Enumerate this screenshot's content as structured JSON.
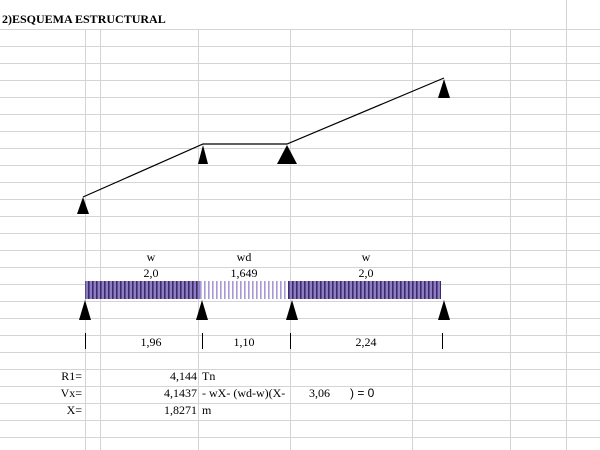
{
  "sheet": {
    "title": "2)ESQUEMA ESTRUCTURAL"
  },
  "loads": {
    "left": {
      "label": "w",
      "value": "2,0"
    },
    "middle": {
      "label": "wd",
      "value": "1,649"
    },
    "right": {
      "label": "w",
      "value": "2,0"
    }
  },
  "spans": [
    "1,96",
    "1,10",
    "2,24"
  ],
  "results": {
    "r1": {
      "label": "R1=",
      "value": "4,144",
      "unit": "Tn"
    },
    "vx": {
      "label": "Vx=",
      "value": "4,1437",
      "expression": "- wX- (wd-w)(X-",
      "shift": "3,06",
      "tail": ") = 0"
    },
    "x": {
      "label": "X=",
      "value": "1,8271",
      "unit": "m"
    }
  },
  "colors": {
    "grid": "#d4d4d4",
    "load_purple": "#8e7cc3",
    "load_light": "#dcd6ef",
    "line": "#000000"
  }
}
